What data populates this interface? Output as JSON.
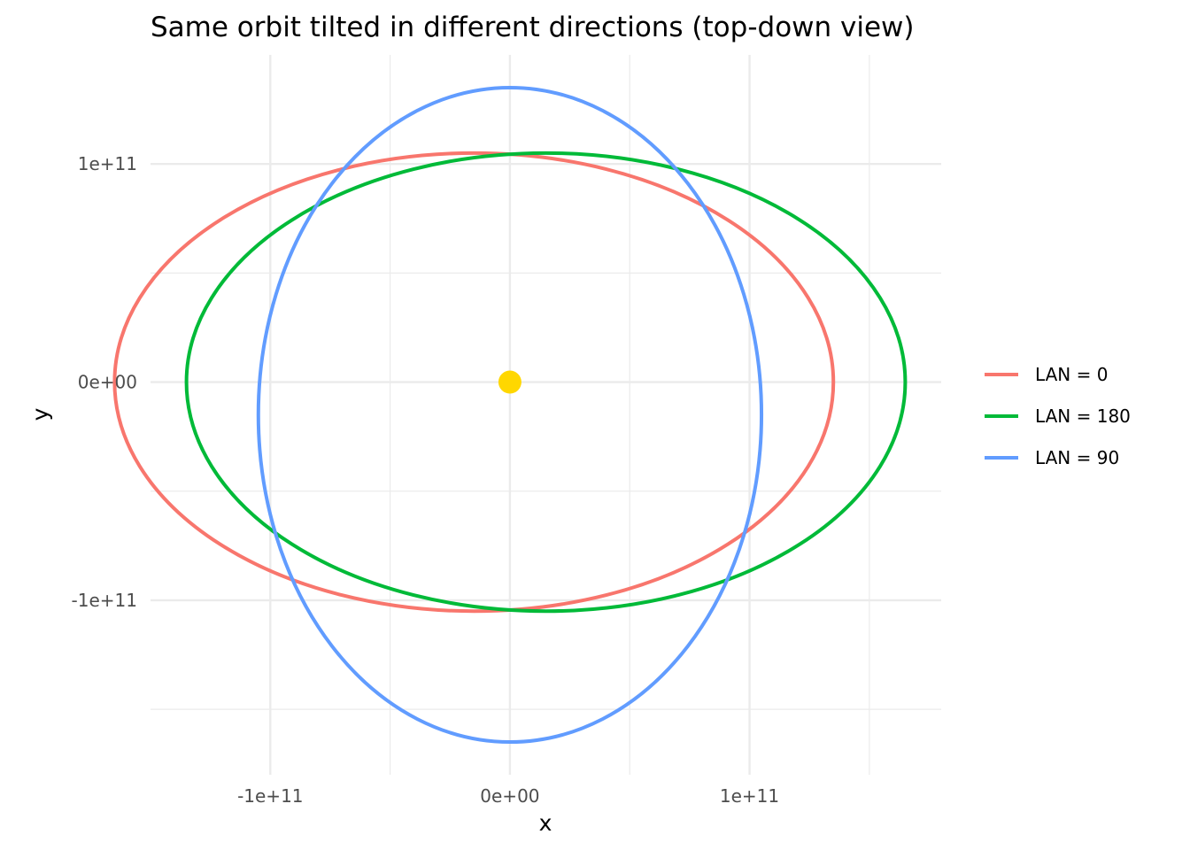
{
  "chart_data": {
    "type": "line",
    "title": "Same orbit tilted in different directions (top-down view)",
    "xlabel": "x",
    "ylabel": "y",
    "xlim": [
      -150000000000,
      180000000000
    ],
    "ylim": [
      -180000000000,
      150000000000
    ],
    "x_ticks": [
      {
        "value": -100000000000,
        "label": "-1e+11"
      },
      {
        "value": 0,
        "label": "0e+00"
      },
      {
        "value": 100000000000,
        "label": "1e+11"
      }
    ],
    "y_ticks": [
      {
        "value": 100000000000,
        "label": "1e+11"
      },
      {
        "value": 0,
        "label": "0e+00"
      },
      {
        "value": -100000000000,
        "label": "-1e+11"
      }
    ],
    "grid": true,
    "legend_position": "right",
    "series": [
      {
        "name": "LAN = 0",
        "color": "#F8766D",
        "shape": "ellipse",
        "center": [
          -15000000000,
          0
        ],
        "semi_axis_x": 150000000000,
        "semi_axis_y": 105000000000
      },
      {
        "name": "LAN = 180",
        "color": "#00BA38",
        "shape": "ellipse",
        "center": [
          15000000000,
          0
        ],
        "semi_axis_x": 150000000000,
        "semi_axis_y": 105000000000
      },
      {
        "name": "LAN = 90",
        "color": "#619CFF",
        "shape": "ellipse",
        "center": [
          0,
          -15000000000
        ],
        "semi_axis_x": 105000000000,
        "semi_axis_y": 150000000000
      }
    ],
    "points": [
      {
        "name": "central-body",
        "x": 0,
        "y": 0,
        "color": "#FFD700"
      }
    ]
  }
}
